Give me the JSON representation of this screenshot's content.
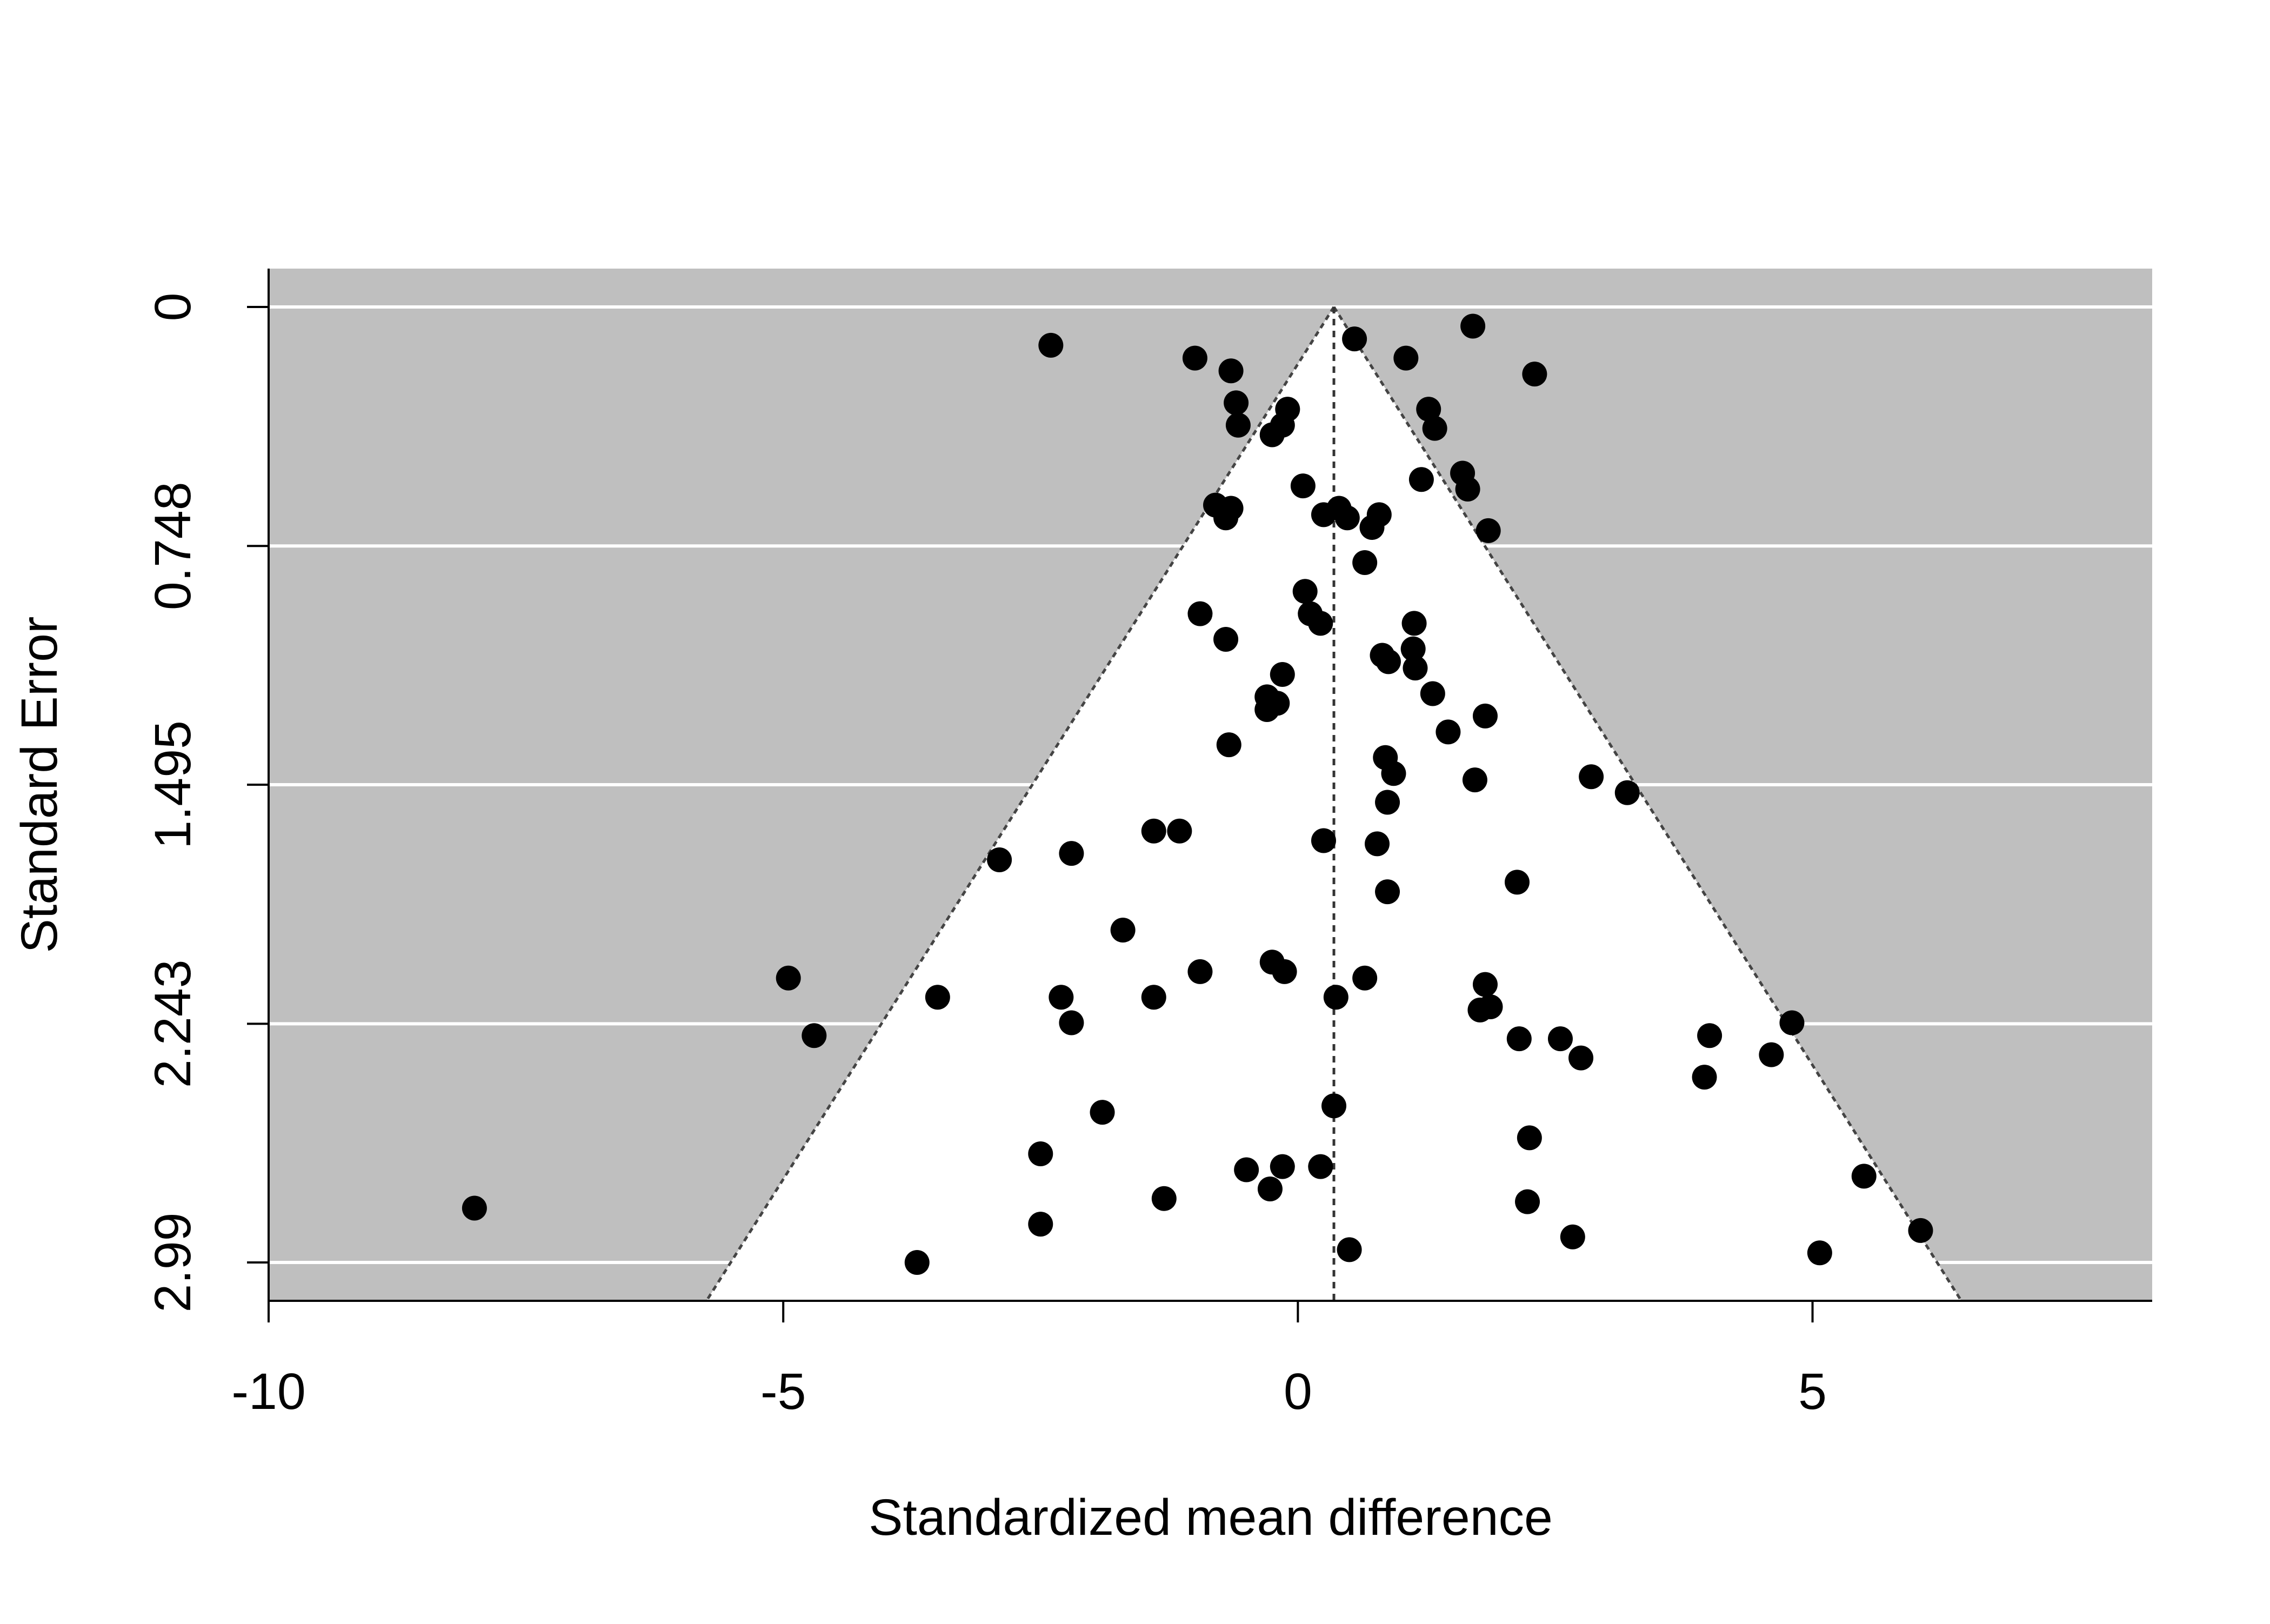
{
  "chart_data": {
    "type": "scatter",
    "title": "",
    "xlabel": "Standardized mean difference",
    "ylabel": "Standard Error",
    "xlim": [
      -10,
      8.3
    ],
    "ylim": [
      3.11,
      -0.12
    ],
    "y_reversed": true,
    "x_ticks": [
      -10,
      -5,
      0,
      5
    ],
    "x_tick_labels": [
      "-10",
      "-5",
      "0",
      "5"
    ],
    "y_ticks": [
      0,
      0.748,
      1.495,
      2.243,
      2.99
    ],
    "y_tick_labels": [
      "0",
      "0.748",
      "1.495",
      "2.243",
      "2.99"
    ],
    "grid": "horizontal at y ticks",
    "funnel": {
      "center": 0.35,
      "multiplier": 1.96,
      "region_color": "#ffffff",
      "outside_color": "#bfbfbf"
    },
    "series": [
      {
        "points": [
          [
            -2.4,
            0.12
          ],
          [
            -1.0,
            0.16
          ],
          [
            -0.65,
            0.2
          ],
          [
            -0.6,
            0.3
          ],
          [
            -0.58,
            0.37
          ],
          [
            -0.1,
            0.32
          ],
          [
            -0.15,
            0.37
          ],
          [
            -0.25,
            0.4
          ],
          [
            0.55,
            0.1
          ],
          [
            1.05,
            0.16
          ],
          [
            1.7,
            0.06
          ],
          [
            2.3,
            0.21
          ],
          [
            1.27,
            0.32
          ],
          [
            1.33,
            0.38
          ],
          [
            0.05,
            0.56
          ],
          [
            1.2,
            0.54
          ],
          [
            1.6,
            0.52
          ],
          [
            1.65,
            0.57
          ],
          [
            -0.8,
            0.62
          ],
          [
            -0.65,
            0.63
          ],
          [
            -0.7,
            0.66
          ],
          [
            0.25,
            0.65
          ],
          [
            0.4,
            0.63
          ],
          [
            0.48,
            0.66
          ],
          [
            0.72,
            0.69
          ],
          [
            0.79,
            0.65
          ],
          [
            1.85,
            0.7
          ],
          [
            0.65,
            0.8
          ],
          [
            0.07,
            0.89
          ],
          [
            0.12,
            0.96
          ],
          [
            0.22,
            0.99
          ],
          [
            -0.95,
            0.96
          ],
          [
            -0.7,
            1.04
          ],
          [
            1.13,
            0.99
          ],
          [
            1.12,
            1.07
          ],
          [
            1.14,
            1.13
          ],
          [
            0.82,
            1.09
          ],
          [
            0.88,
            1.11
          ],
          [
            -0.15,
            1.15
          ],
          [
            -0.3,
            1.22
          ],
          [
            -0.2,
            1.24
          ],
          [
            -0.3,
            1.26
          ],
          [
            1.31,
            1.21
          ],
          [
            1.82,
            1.28
          ],
          [
            -0.67,
            1.37
          ],
          [
            1.46,
            1.33
          ],
          [
            0.85,
            1.41
          ],
          [
            0.93,
            1.46
          ],
          [
            2.85,
            1.47
          ],
          [
            1.72,
            1.48
          ],
          [
            3.2,
            1.52
          ],
          [
            0.87,
            1.55
          ],
          [
            -1.4,
            1.64
          ],
          [
            -1.15,
            1.64
          ],
          [
            0.25,
            1.67
          ],
          [
            0.77,
            1.68
          ],
          [
            -2.2,
            1.71
          ],
          [
            -2.9,
            1.73
          ],
          [
            2.13,
            1.8
          ],
          [
            0.87,
            1.83
          ],
          [
            -1.7,
            1.95
          ],
          [
            -0.25,
            2.05
          ],
          [
            -0.13,
            2.08
          ],
          [
            -0.95,
            2.08
          ],
          [
            0.65,
            2.1
          ],
          [
            -4.95,
            2.1
          ],
          [
            1.82,
            2.12
          ],
          [
            -3.5,
            2.16
          ],
          [
            -2.3,
            2.16
          ],
          [
            -1.4,
            2.16
          ],
          [
            0.37,
            2.16
          ],
          [
            1.77,
            2.2
          ],
          [
            1.87,
            2.19
          ],
          [
            4.8,
            2.24
          ],
          [
            -2.2,
            2.24
          ],
          [
            -4.7,
            2.28
          ],
          [
            4.0,
            2.28
          ],
          [
            2.15,
            2.29
          ],
          [
            2.55,
            2.29
          ],
          [
            4.6,
            2.34
          ],
          [
            2.75,
            2.35
          ],
          [
            3.95,
            2.41
          ],
          [
            0.35,
            2.5
          ],
          [
            -1.9,
            2.52
          ],
          [
            2.25,
            2.6
          ],
          [
            -2.5,
            2.65
          ],
          [
            -0.5,
            2.7
          ],
          [
            -0.15,
            2.69
          ],
          [
            0.22,
            2.69
          ],
          [
            -0.27,
            2.76
          ],
          [
            5.5,
            2.72
          ],
          [
            -1.3,
            2.79
          ],
          [
            2.23,
            2.8
          ],
          [
            -8.0,
            2.82
          ],
          [
            6.05,
            2.89
          ],
          [
            -2.5,
            2.87
          ],
          [
            2.67,
            2.91
          ],
          [
            0.5,
            2.95
          ],
          [
            5.07,
            2.96
          ],
          [
            -3.7,
            2.99
          ]
        ]
      }
    ]
  }
}
